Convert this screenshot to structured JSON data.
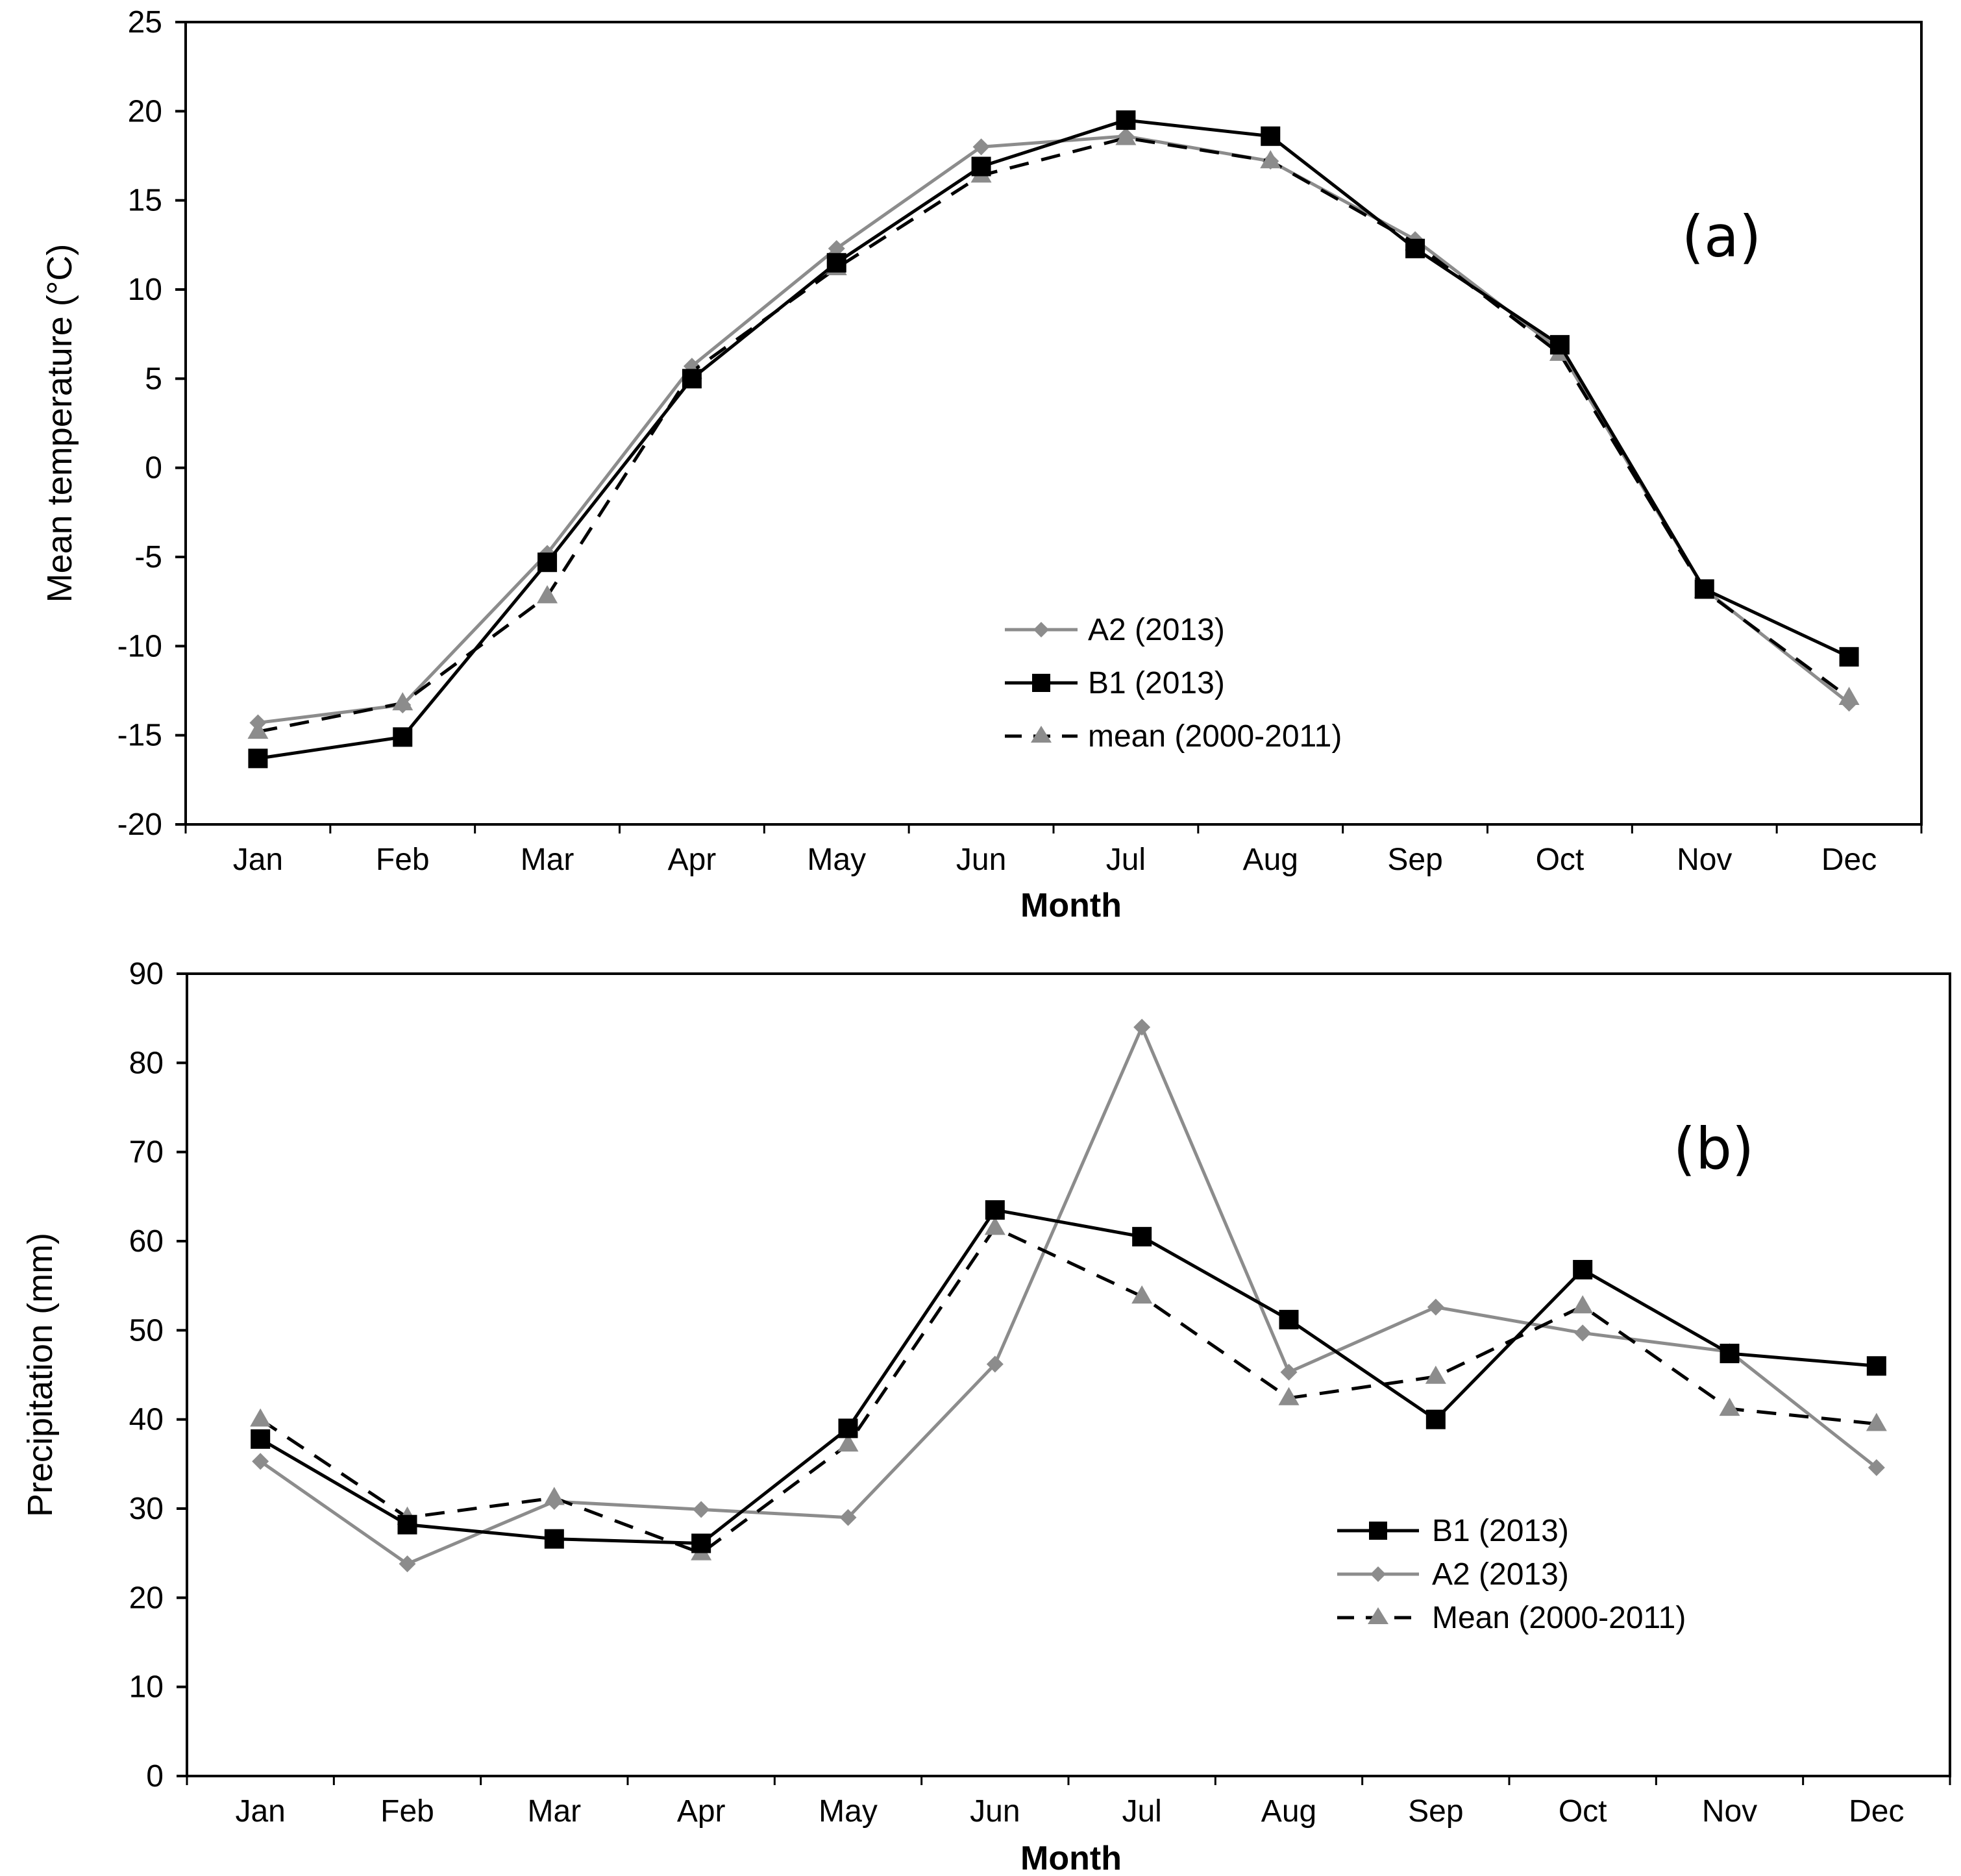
{
  "chart_data": [
    {
      "type": "line",
      "panel_label": "(a)",
      "xlabel": "Month",
      "ylabel": "Mean temperature (°C)",
      "ylim": [
        -20,
        25
      ],
      "yticks": [
        25,
        20,
        15,
        10,
        5,
        0,
        -5,
        -10,
        -15,
        -20
      ],
      "categories": [
        "Jan",
        "Feb",
        "Mar",
        "Apr",
        "May",
        "Jun",
        "Jul",
        "Aug",
        "Sep",
        "Oct",
        "Nov",
        "Dec"
      ],
      "legend_position": "center-right",
      "series": [
        {
          "name": "A2 (2013)",
          "marker": "diamond",
          "color": "#8c8c8c",
          "dash": false,
          "values": [
            -14.3,
            -13.3,
            -4.8,
            5.7,
            12.3,
            18.0,
            18.6,
            17.2,
            12.8,
            6.6,
            -6.8,
            -13.2
          ]
        },
        {
          "name": "B1 (2013)",
          "marker": "square",
          "color": "#000000",
          "dash": false,
          "values": [
            -16.3,
            -15.1,
            -5.3,
            5.0,
            11.5,
            16.9,
            19.5,
            18.6,
            12.3,
            6.9,
            -6.8,
            -10.6
          ]
        },
        {
          "name": "mean (2000-2011)",
          "marker": "triangle",
          "color": "#8c8c8c",
          "line_color": "#000000",
          "dash": true,
          "values": [
            -14.8,
            -13.2,
            -7.2,
            5.4,
            11.2,
            16.4,
            18.5,
            17.2,
            12.6,
            6.4,
            -6.9,
            -12.9
          ]
        }
      ]
    },
    {
      "type": "line",
      "panel_label": "(b)",
      "xlabel": "Month",
      "ylabel": "Precipitation (mm)",
      "ylim": [
        0,
        90
      ],
      "yticks": [
        90,
        80,
        70,
        60,
        50,
        40,
        30,
        20,
        10,
        0
      ],
      "categories": [
        "Jan",
        "Feb",
        "Mar",
        "Apr",
        "May",
        "Jun",
        "Jul",
        "Aug",
        "Sep",
        "Oct",
        "Nov",
        "Dec"
      ],
      "legend_position": "lower-right",
      "series": [
        {
          "name": "B1 (2013)",
          "marker": "square",
          "color": "#000000",
          "dash": false,
          "values": [
            37.8,
            28.2,
            26.6,
            26.1,
            39.0,
            63.5,
            60.5,
            51.2,
            40.0,
            56.8,
            47.4,
            46.0
          ]
        },
        {
          "name": "A2 (2013)",
          "marker": "diamond",
          "color": "#8c8c8c",
          "dash": false,
          "values": [
            35.3,
            23.8,
            30.8,
            29.9,
            29.0,
            46.2,
            84.0,
            45.3,
            52.6,
            49.7,
            47.6,
            34.6
          ]
        },
        {
          "name": "Mean (2000-2011)",
          "marker": "triangle",
          "color": "#8c8c8c",
          "line_color": "#000000",
          "dash": true,
          "values": [
            40.0,
            29.0,
            31.2,
            25.0,
            37.2,
            61.5,
            53.8,
            42.4,
            44.8,
            52.7,
            41.2,
            39.5
          ]
        }
      ]
    }
  ]
}
